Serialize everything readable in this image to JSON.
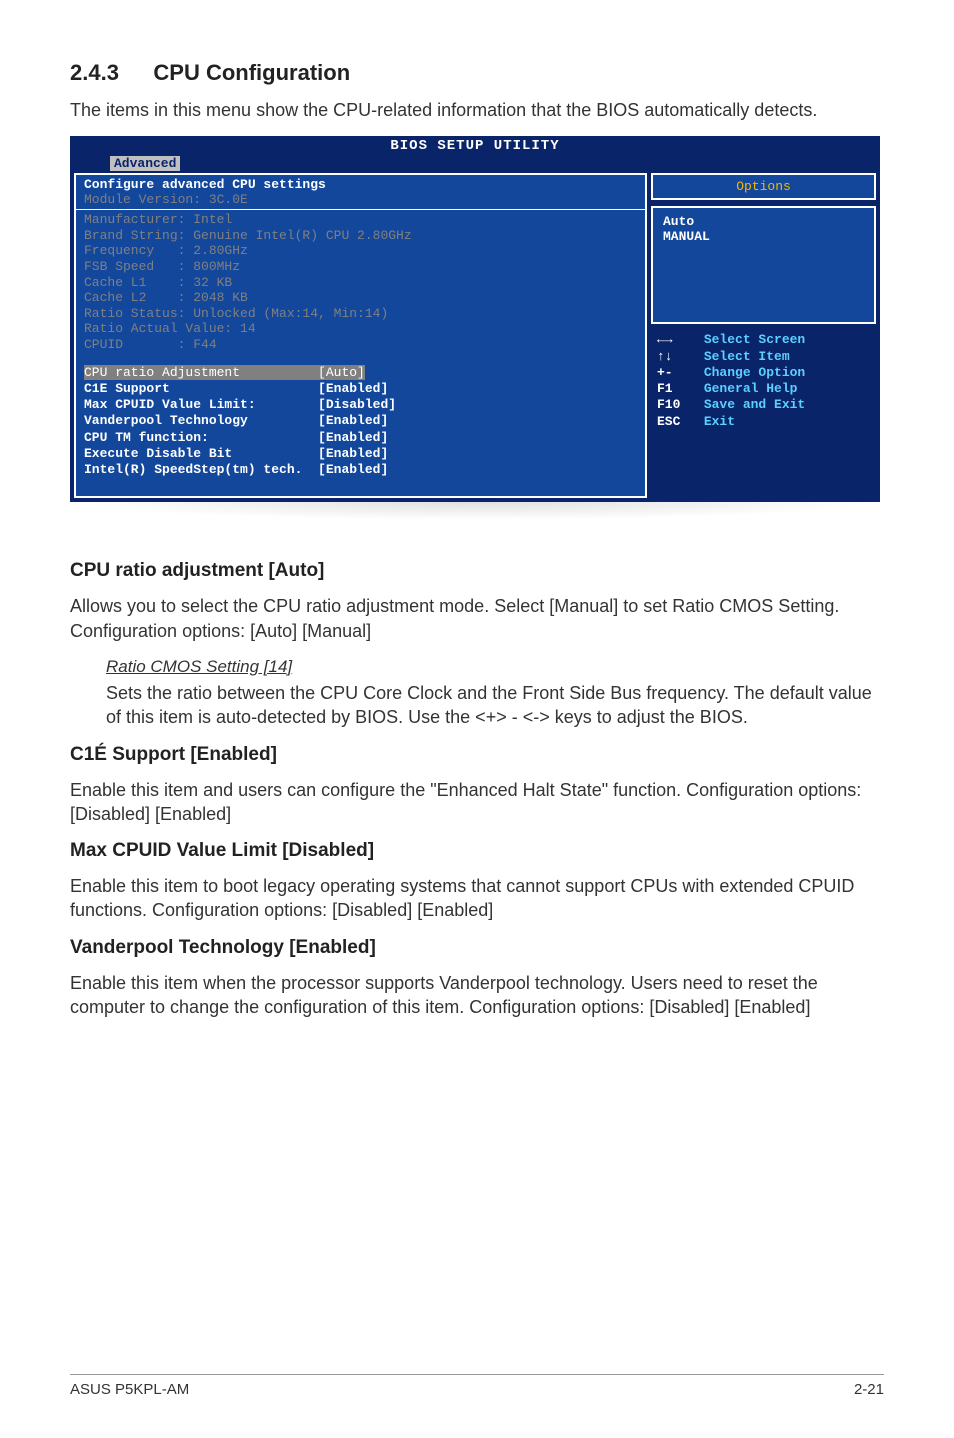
{
  "section": {
    "number": "2.4.3",
    "title": "CPU Configuration"
  },
  "intro": "The items in this menu show the CPU-related information that the BIOS automatically detects.",
  "bios": {
    "titlebar": "BIOS SETUP UTILITY",
    "tab": "Advanced",
    "header1": "Configure advanced CPU settings",
    "header2": "Module Version: 3C.0E",
    "info": "Manufacturer: Intel\nBrand String: Genuine Intel(R) CPU 2.80GHz\nFrequency   : 2.80GHz\nFSB Speed   : 800MHz\nCache L1    : 32 KB\nCache L2    : 2048 KB\nRatio Status: Unlocked (Max:14, Min:14)\nRatio Actual Value: 14\nCPUID       : F44",
    "settings": [
      {
        "label": "CPU ratio Adjustment",
        "value": "[Auto]",
        "hl": true
      },
      {
        "label": "C1E Support",
        "value": "[Enabled]"
      },
      {
        "label": "Max CPUID Value Limit:",
        "value": "[Disabled]"
      },
      {
        "label": "Vanderpool Technology",
        "value": "[Enabled]"
      },
      {
        "label": "CPU TM function:",
        "value": "[Enabled]"
      },
      {
        "label": "Execute Disable Bit",
        "value": "[Enabled]"
      },
      {
        "label": "Intel(R) SpeedStep(tm) tech.",
        "value": "[Enabled]"
      }
    ],
    "options_title": "Options",
    "options": "Auto\nMANUAL",
    "nav": [
      {
        "k": "←→",
        "v": "Select Screen"
      },
      {
        "k": "↑↓",
        "v": "Select Item"
      },
      {
        "k": "+-",
        "v": "Change Option"
      },
      {
        "k": "F1",
        "v": "General Help"
      },
      {
        "k": "F10",
        "v": "Save and Exit"
      },
      {
        "k": "ESC",
        "v": "Exit"
      }
    ]
  },
  "sections": {
    "s1": {
      "h": "CPU ratio adjustment [Auto]",
      "p": "Allows you to select the CPU ratio adjustment mode. Select [Manual] to set Ratio CMOS Setting. Configuration options: [Auto] [Manual]",
      "subh": "Ratio CMOS Setting [14]",
      "subp": "Sets the ratio between the CPU Core Clock and the Front Side Bus frequency. The default value of this item is auto-detected by BIOS. Use the <+> - <-> keys to adjust the BIOS."
    },
    "s2": {
      "h": "C1É Support [Enabled]",
      "p": "Enable this item and users can configure the \"Enhanced Halt State\" function. Configuration options: [Disabled] [Enabled]"
    },
    "s3": {
      "h": "Max CPUID Value Limit [Disabled]",
      "p": "Enable this item to boot legacy operating systems that cannot support CPUs with extended CPUID functions. Configuration options: [Disabled] [Enabled]"
    },
    "s4": {
      "h": "Vanderpool Technology [Enabled]",
      "p": "Enable this item when the processor supports Vanderpool technology. Users need to reset the computer to change the configuration of this item. Configuration options: [Disabled] [Enabled]"
    }
  },
  "footer": {
    "left": "ASUS P5KPL-AM",
    "right": "2-21"
  }
}
